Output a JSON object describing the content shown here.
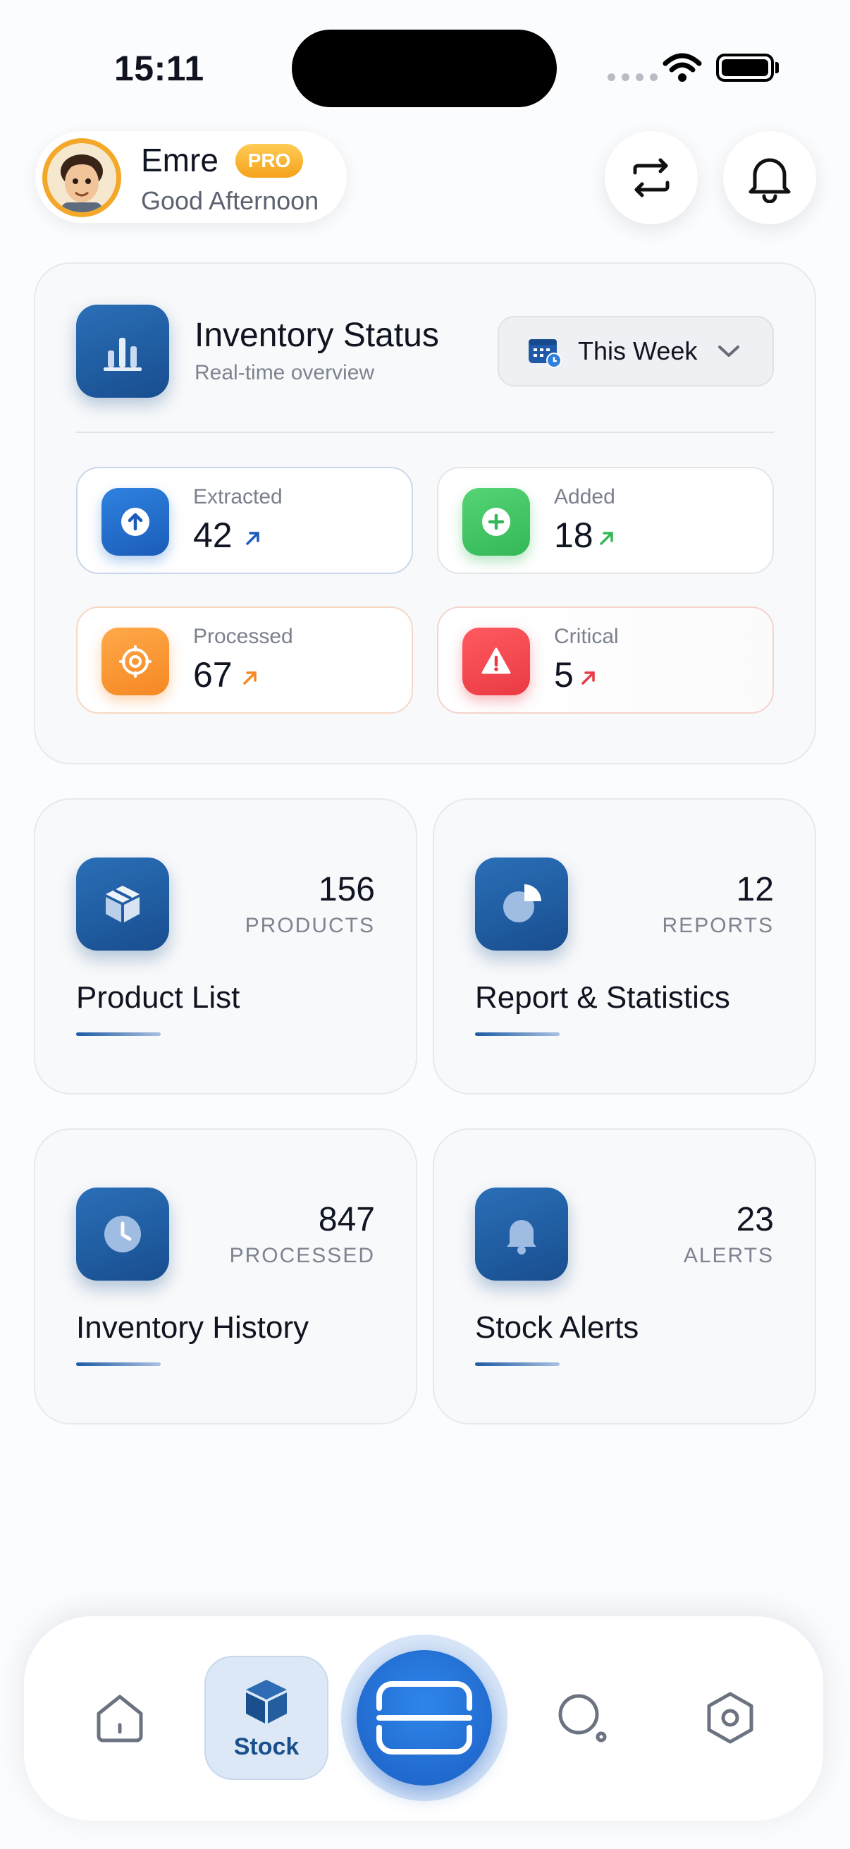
{
  "status_bar": {
    "time": "15:11"
  },
  "header": {
    "user_name": "Emre",
    "badge": "PRO",
    "greeting": "Good Afternoon",
    "icons": [
      "swap-arrows-icon",
      "bell-icon"
    ]
  },
  "inventory_status": {
    "title": "Inventory Status",
    "subtitle": "Real-time overview",
    "period": {
      "selected": "This Week",
      "icon": "calendar-icon"
    },
    "stats": [
      {
        "label": "Extracted",
        "value": "42",
        "color": "#1f6fd0",
        "icon": "arrow-up-circle-icon"
      },
      {
        "label": "Added",
        "value": "18",
        "color": "#3cc461",
        "icon": "plus-circle-icon"
      },
      {
        "label": "Processed",
        "value": "67",
        "color": "#f7922c",
        "icon": "gear-circle-icon"
      },
      {
        "label": "Critical",
        "value": "5",
        "color": "#f0444c",
        "icon": "warning-triangle-icon"
      }
    ]
  },
  "features": [
    {
      "title": "Product List",
      "count": "156",
      "unit": "PRODUCTS",
      "icon": "box-icon"
    },
    {
      "title": "Report & Statistics",
      "count": "12",
      "unit": "REPORTS",
      "icon": "pie-chart-icon"
    },
    {
      "title": "Inventory History",
      "count": "847",
      "unit": "PROCESSED",
      "icon": "clock-icon"
    },
    {
      "title": "Stock Alerts",
      "count": "23",
      "unit": "ALERTS",
      "icon": "bell-icon"
    }
  ],
  "nav": {
    "items": [
      {
        "icon": "home-icon"
      },
      {
        "icon": "cube-icon",
        "label": "Stock",
        "active": true
      },
      {
        "icon": "scan-icon",
        "primary": true
      },
      {
        "icon": "search-icon"
      },
      {
        "icon": "settings-icon"
      }
    ]
  },
  "colors": {
    "accent": "#1b5fc4",
    "brand_dark": "#184e8f",
    "pro_badge": "#f5a21c"
  }
}
